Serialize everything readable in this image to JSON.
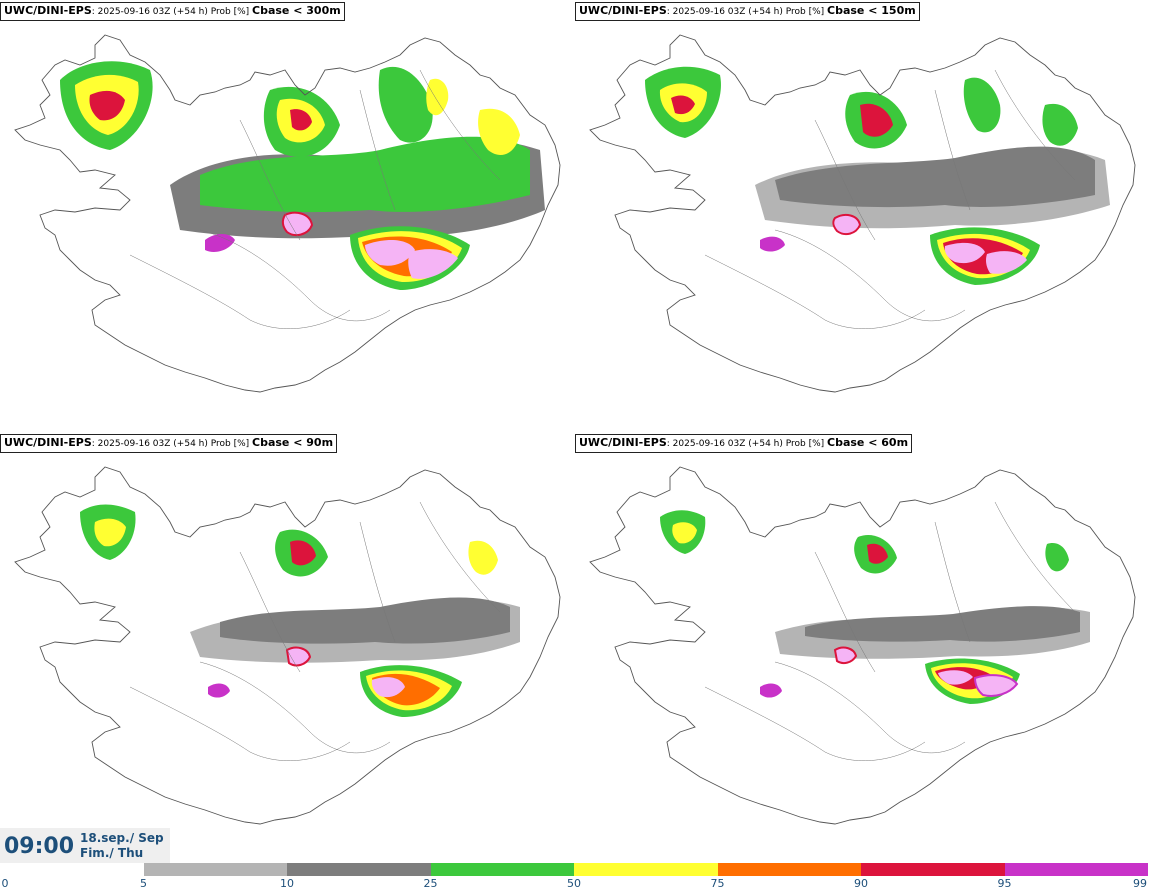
{
  "panels": [
    {
      "model": "UWC/DINI-EPS",
      "run": ": 2025-09-16 03Z (+54 h) Prob [%] ",
      "threshold": "Cbase < 300m"
    },
    {
      "model": "UWC/DINI-EPS",
      "run": ": 2025-09-16 03Z (+54 h) Prob [%] ",
      "threshold": "Cbase < 150m"
    },
    {
      "model": "UWC/DINI-EPS",
      "run": ": 2025-09-16 03Z (+54 h) Prob [%] ",
      "threshold": "Cbase < 90m"
    },
    {
      "model": "UWC/DINI-EPS",
      "run": ": 2025-09-16 03Z (+54 h) Prob [%] ",
      "threshold": "Cbase < 60m"
    }
  ],
  "valid_time": {
    "time": "09:00",
    "date_line": "18.sep./ Sep",
    "day_line": "Fim./ Thu"
  },
  "colorbar": {
    "ticks": [
      "0",
      "5",
      "10",
      "25",
      "50",
      "75",
      "90",
      "95",
      "99"
    ],
    "colors": [
      "#ffffff",
      "#b4b4b4",
      "#7d7d7d",
      "#3cc83c",
      "#ffff32",
      "#ff6e00",
      "#dc143c",
      "#c832c8",
      "#f5b4f5"
    ]
  }
}
